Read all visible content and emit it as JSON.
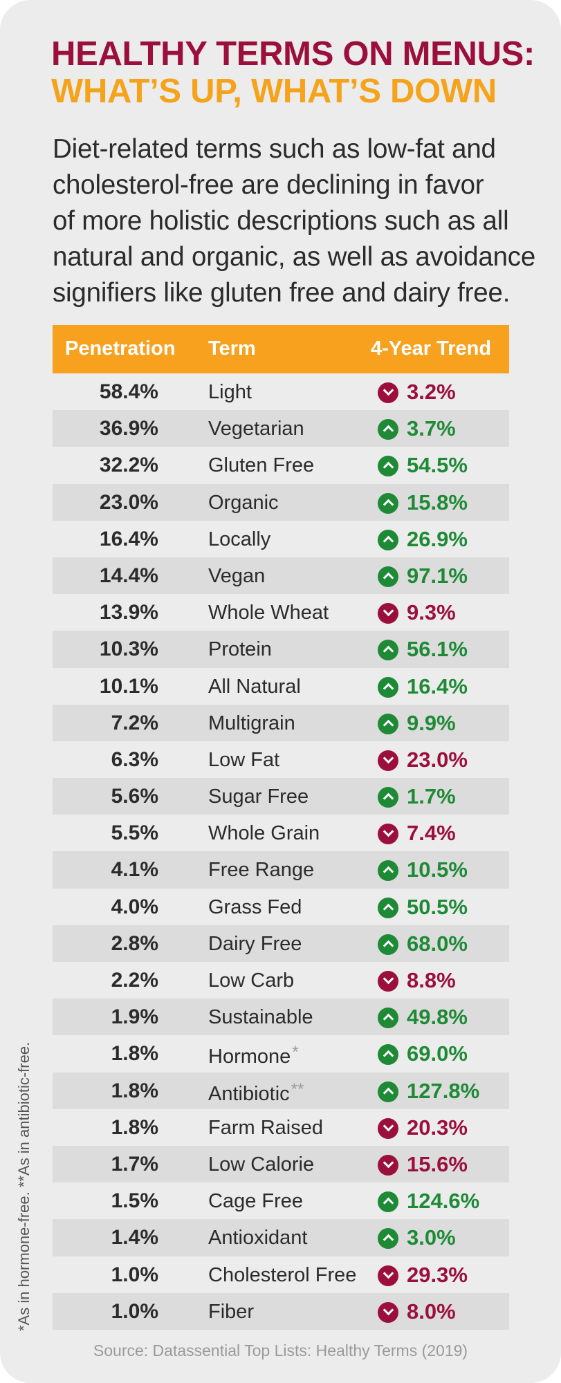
{
  "title_line1": "HEALTHY TERMS ON MENUS:",
  "title_line2": "WHAT’S UP, WHAT’S DOWN",
  "intro_lines": [
    "Diet-related terms such as low-fat and",
    "cholesterol-free are declining in favor",
    "of more holistic descriptions such as all",
    "natural and organic, as well as avoidance",
    "signifiers like gluten free and dairy free."
  ],
  "table": {
    "headers": {
      "penetration": "Penetration",
      "term": "Term",
      "trend": "4-Year Trend"
    },
    "rows": [
      {
        "penetration": "58.4%",
        "term": "Light",
        "note": "",
        "direction": "down",
        "trend": "3.2%"
      },
      {
        "penetration": "36.9%",
        "term": "Vegetarian",
        "note": "",
        "direction": "up",
        "trend": "3.7%"
      },
      {
        "penetration": "32.2%",
        "term": "Gluten Free",
        "note": "",
        "direction": "up",
        "trend": "54.5%"
      },
      {
        "penetration": "23.0%",
        "term": "Organic",
        "note": "",
        "direction": "up",
        "trend": "15.8%"
      },
      {
        "penetration": "16.4%",
        "term": "Locally",
        "note": "",
        "direction": "up",
        "trend": "26.9%"
      },
      {
        "penetration": "14.4%",
        "term": "Vegan",
        "note": "",
        "direction": "up",
        "trend": "97.1%"
      },
      {
        "penetration": "13.9%",
        "term": "Whole Wheat",
        "note": "",
        "direction": "down",
        "trend": "9.3%"
      },
      {
        "penetration": "10.3%",
        "term": "Protein",
        "note": "",
        "direction": "up",
        "trend": "56.1%"
      },
      {
        "penetration": "10.1%",
        "term": "All Natural",
        "note": "",
        "direction": "up",
        "trend": "16.4%"
      },
      {
        "penetration": "7.2%",
        "term": "Multigrain",
        "note": "",
        "direction": "up",
        "trend": "9.9%"
      },
      {
        "penetration": "6.3%",
        "term": "Low Fat",
        "note": "",
        "direction": "down",
        "trend": "23.0%"
      },
      {
        "penetration": "5.6%",
        "term": "Sugar Free",
        "note": "",
        "direction": "up",
        "trend": "1.7%"
      },
      {
        "penetration": "5.5%",
        "term": "Whole Grain",
        "note": "",
        "direction": "down",
        "trend": "7.4%"
      },
      {
        "penetration": "4.1%",
        "term": "Free Range",
        "note": "",
        "direction": "up",
        "trend": "10.5%"
      },
      {
        "penetration": "4.0%",
        "term": "Grass Fed",
        "note": "",
        "direction": "up",
        "trend": "50.5%"
      },
      {
        "penetration": "2.8%",
        "term": "Dairy Free",
        "note": "",
        "direction": "up",
        "trend": "68.0%"
      },
      {
        "penetration": "2.2%",
        "term": "Low Carb",
        "note": "",
        "direction": "down",
        "trend": "8.8%"
      },
      {
        "penetration": "1.9%",
        "term": "Sustainable",
        "note": "",
        "direction": "up",
        "trend": "49.8%"
      },
      {
        "penetration": "1.8%",
        "term": "Hormone",
        "note": "*",
        "direction": "up",
        "trend": "69.0%"
      },
      {
        "penetration": "1.8%",
        "term": "Antibiotic",
        "note": "**",
        "direction": "up",
        "trend": "127.8%"
      },
      {
        "penetration": "1.8%",
        "term": "Farm Raised",
        "note": "",
        "direction": "down",
        "trend": "20.3%"
      },
      {
        "penetration": "1.7%",
        "term": "Low Calorie",
        "note": "",
        "direction": "down",
        "trend": "15.6%"
      },
      {
        "penetration": "1.5%",
        "term": "Cage Free",
        "note": "",
        "direction": "up",
        "trend": "124.6%"
      },
      {
        "penetration": "1.4%",
        "term": "Antioxidant",
        "note": "",
        "direction": "up",
        "trend": "3.0%"
      },
      {
        "penetration": "1.0%",
        "term": "Cholesterol Free",
        "note": "",
        "direction": "down",
        "trend": "29.3%"
      },
      {
        "penetration": "1.0%",
        "term": "Fiber",
        "note": "",
        "direction": "down",
        "trend": "8.0%"
      }
    ]
  },
  "footnote": "*As in hormone-free.  **As in antibiotic-free.",
  "source": "Source: Datassential Top Lists: Healthy Terms (2019)",
  "colors": {
    "title_primary": "#9b0f3c",
    "title_secondary": "#f5a31a",
    "header_bg": "#f7a11f",
    "trend_up": "#1e8a36",
    "trend_down": "#9b0f3c"
  },
  "icons": {
    "up": "chevron-up-circle-icon",
    "down": "chevron-down-circle-icon"
  }
}
